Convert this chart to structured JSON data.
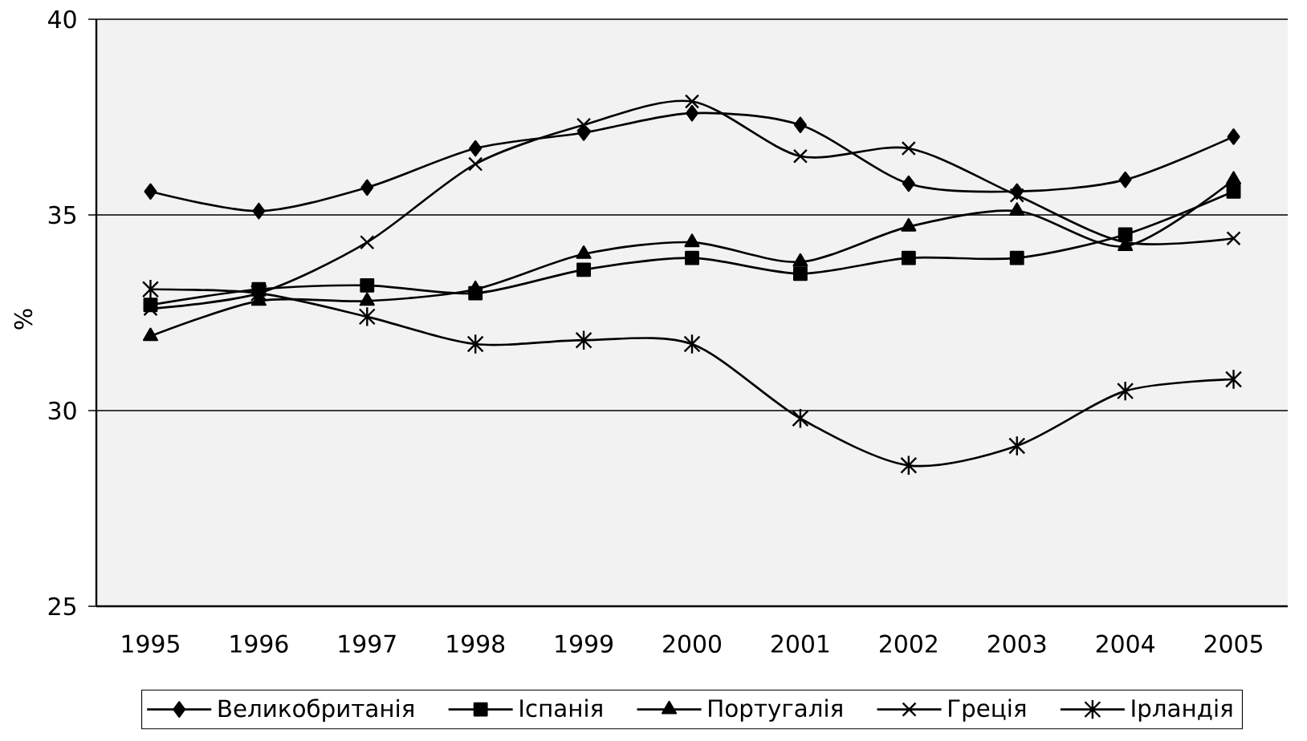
{
  "chart_data": {
    "type": "line",
    "ylabel": "%",
    "categories": [
      "1995",
      "1996",
      "1997",
      "1998",
      "1999",
      "2000",
      "2001",
      "2002",
      "2003",
      "2004",
      "2005"
    ],
    "series": [
      {
        "name": "Великобританія",
        "color": "#000000",
        "marker": "diamond",
        "values": [
          35.6,
          35.1,
          35.7,
          36.7,
          37.1,
          37.6,
          37.3,
          35.8,
          35.6,
          35.9,
          37.0
        ]
      },
      {
        "name": "Іспанія",
        "color": "#000000",
        "marker": "square",
        "values": [
          32.7,
          33.1,
          33.2,
          33.0,
          33.6,
          33.9,
          33.5,
          33.9,
          33.9,
          34.5,
          35.6
        ]
      },
      {
        "name": "Португалія",
        "color": "#000000",
        "marker": "triangle",
        "values": [
          31.9,
          32.8,
          32.8,
          33.1,
          34.0,
          34.3,
          33.8,
          34.7,
          35.1,
          34.2,
          35.9
        ]
      },
      {
        "name": "Греція",
        "color": "#000000",
        "marker": "cross",
        "values": [
          32.6,
          33.0,
          34.3,
          36.3,
          37.3,
          37.9,
          36.5,
          36.7,
          35.5,
          34.3,
          34.4
        ]
      },
      {
        "name": "Ірландія",
        "color": "#000000",
        "marker": "cross",
        "values": [
          33.1,
          33.0,
          32.4,
          31.7,
          31.8,
          31.7,
          29.8,
          28.6,
          29.1,
          30.5,
          30.8
        ]
      }
    ],
    "ylim": [
      25,
      40
    ],
    "yticks": [
      25,
      30,
      35,
      40
    ],
    "grid": "y",
    "legend": "bottom"
  }
}
